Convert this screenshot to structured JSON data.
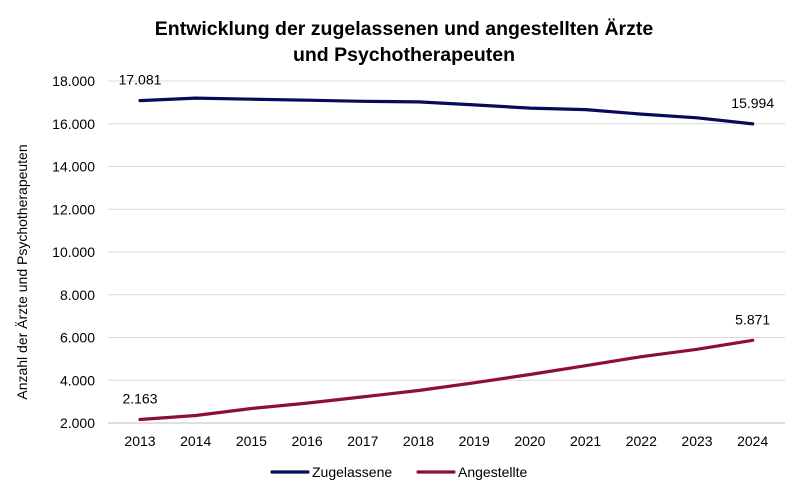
{
  "chart_data": {
    "type": "line",
    "title_line1": "Entwicklung der zugelassenen und angestellten Ärzte",
    "title_line2": "und Psychotherapeuten",
    "xlabel": "",
    "ylabel": "Anzahl der Ärzte und Psychotherapeuten",
    "x": [
      "2013",
      "2014",
      "2015",
      "2016",
      "2017",
      "2018",
      "2019",
      "2020",
      "2021",
      "2022",
      "2023",
      "2024"
    ],
    "ylim": [
      2000,
      18000
    ],
    "yticks": [
      2000,
      4000,
      6000,
      8000,
      10000,
      12000,
      14000,
      16000,
      18000
    ],
    "ytick_labels": [
      "2.000",
      "4.000",
      "6.000",
      "8.000",
      "10.000",
      "12.000",
      "14.000",
      "16.000",
      "18.000"
    ],
    "grid": "horizontal",
    "legend_position": "bottom",
    "series": [
      {
        "name": "Zugelassene",
        "color": "#0a0a5c",
        "values": [
          17081,
          17200,
          17150,
          17100,
          17050,
          17020,
          16880,
          16730,
          16660,
          16450,
          16280,
          15994
        ],
        "labels": [
          {
            "index": 0,
            "text": "17.081"
          },
          {
            "index": 11,
            "text": "15.994"
          }
        ]
      },
      {
        "name": "Angestellte",
        "color": "#8b0f3e",
        "values": [
          2163,
          2350,
          2680,
          2930,
          3220,
          3520,
          3880,
          4270,
          4680,
          5100,
          5450,
          5871
        ],
        "labels": [
          {
            "index": 0,
            "text": "2.163"
          },
          {
            "index": 11,
            "text": "5.871"
          }
        ]
      }
    ]
  }
}
